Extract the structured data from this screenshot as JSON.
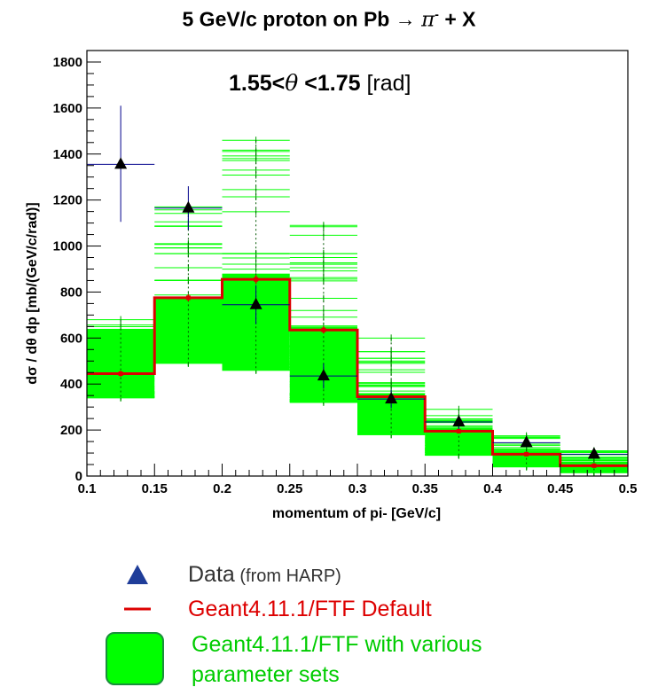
{
  "chart_data": {
    "type": "line",
    "title": {
      "prefix": "5 GeV/c proton on Pb →",
      "pi": "π",
      "sup": "-",
      "suffix": " + X"
    },
    "annotation": {
      "pre": "1.55<",
      "theta": "θ",
      "post": " <1.75",
      "unit": " [rad]"
    },
    "xlabel": "momentum of pi- [GeV/c]",
    "ylabel": "dσ / dθ dp [mb/(GeV/c/rad)]",
    "xlim": [
      0.1,
      0.5
    ],
    "ylim": [
      0,
      1850
    ],
    "xticks": [
      "0.1",
      "0.15",
      "0.2",
      "0.25",
      "0.3",
      "0.35",
      "0.4",
      "0.45",
      "0.5"
    ],
    "yticks": [
      "0",
      "200",
      "400",
      "600",
      "800",
      "1000",
      "1200",
      "1400",
      "1600",
      "1800"
    ],
    "bin_edges": [
      0.1,
      0.15,
      0.2,
      0.25,
      0.3,
      0.35,
      0.4,
      0.45,
      0.5
    ],
    "series": [
      {
        "name": "Data",
        "kind": "markers",
        "color": "#000000",
        "error_color": "#00008b",
        "x": [
          0.125,
          0.175,
          0.225,
          0.275,
          0.325,
          0.375,
          0.425,
          0.475
        ],
        "y": [
          1355,
          1165,
          745,
          435,
          335,
          235,
          145,
          95
        ],
        "yerr_low": [
          250,
          95,
          85,
          55,
          40,
          30,
          20,
          15
        ],
        "yerr_high": [
          255,
          95,
          85,
          55,
          40,
          30,
          20,
          15
        ]
      },
      {
        "name": "Geant4.11.1/FTF Default",
        "kind": "step",
        "color": "#dd0000",
        "values": [
          445,
          775,
          855,
          635,
          345,
          195,
          95,
          45
        ],
        "yerr": [
          12,
          15,
          18,
          15,
          10,
          8,
          6,
          5
        ]
      },
      {
        "name": "Geant4.11.1/FTF with various parameter sets",
        "kind": "band",
        "color": "#00ff00",
        "band_low": [
          340,
          490,
          460,
          320,
          180,
          90,
          40,
          15
        ],
        "band_high": [
          680,
          1170,
          1460,
          1090,
          600,
          290,
          175,
          110
        ],
        "dense_low": [
          340,
          490,
          460,
          320,
          180,
          90,
          40,
          15
        ],
        "dense_high": [
          640,
          780,
          880,
          650,
          360,
          210,
          105,
          55
        ]
      }
    ],
    "legend": {
      "position": "bottom",
      "entries": [
        {
          "symbol": "triangle",
          "color": "#1f3d99",
          "label": "Data",
          "sublabel": " (from HARP)",
          "text_color": "#333333"
        },
        {
          "symbol": "line",
          "color": "#dd0000",
          "label": "Geant4.11.1/FTF Default",
          "text_color": "#dd0000"
        },
        {
          "symbol": "box",
          "color": "#00ff00",
          "label": "Geant4.11.1/FTF with various",
          "label2": "parameter sets",
          "text_color": "#00cc00"
        }
      ]
    }
  }
}
